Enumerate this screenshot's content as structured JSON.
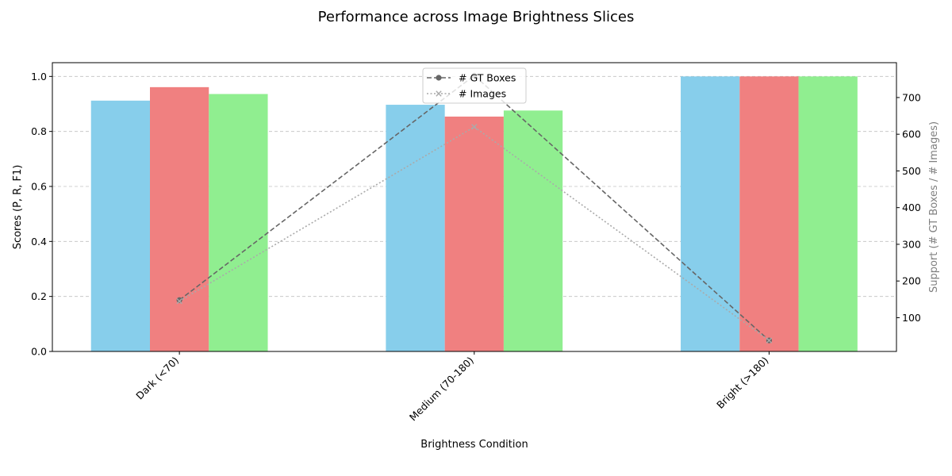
{
  "chart_data": {
    "type": "bar",
    "title": "Performance across Image Brightness Slices",
    "xlabel": "Brightness Condition",
    "ylabel": "Scores (P, R, F1)",
    "ylabel_right": "Support (# GT Boxes / # Images)",
    "categories": [
      "Dark (<70)",
      "Medium (70-180)",
      "Bright (>180)"
    ],
    "ylim": [
      0,
      1.05
    ],
    "yticks": [
      0.0,
      0.2,
      0.4,
      0.6,
      0.8,
      1.0
    ],
    "ytick_labels": [
      "0.0",
      "0.2",
      "0.4",
      "0.6",
      "0.8",
      "1.0"
    ],
    "y2lim": [
      8,
      795
    ],
    "y2ticks": [
      100,
      200,
      300,
      400,
      500,
      600,
      700
    ],
    "y2tick_labels": [
      "100",
      "200",
      "300",
      "400",
      "500",
      "600",
      "700"
    ],
    "grid": "y-dashed",
    "legend_position": "upper center",
    "series": [
      {
        "values": [
          0.912,
          0.897,
          1.0
        ],
        "color": "#87CEEB"
      },
      {
        "values": [
          0.961,
          0.854,
          1.0
        ],
        "color": "#F08080"
      },
      {
        "values": [
          0.936,
          0.876,
          1.0
        ],
        "color": "#90EE90"
      }
    ],
    "line_series": [
      {
        "name": "# GT Boxes",
        "values": [
          148,
          760,
          38
        ],
        "color": "#666666",
        "style": "dashed",
        "marker": "circle"
      },
      {
        "name": "# Images",
        "values": [
          145,
          620,
          38
        ],
        "color": "#AAAAAA",
        "style": "dotted",
        "marker": "x"
      }
    ]
  }
}
